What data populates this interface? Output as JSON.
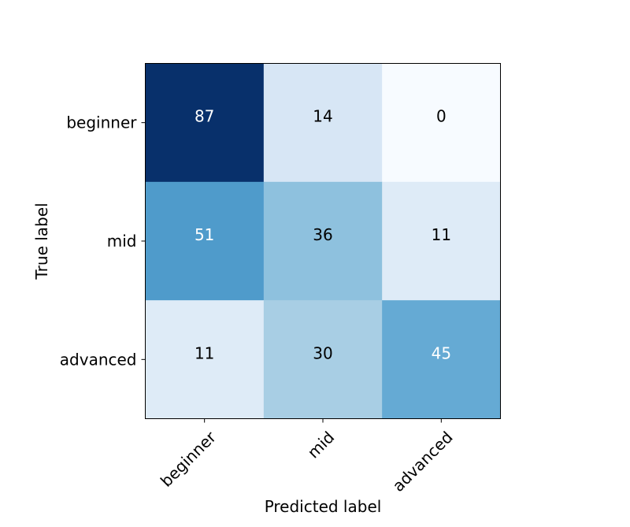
{
  "chart_data": {
    "type": "heatmap",
    "title": "",
    "xlabel": "Predicted label",
    "ylabel": "True label",
    "x_categories": [
      "beginner",
      "mid",
      "advanced"
    ],
    "y_categories": [
      "beginner",
      "mid",
      "advanced"
    ],
    "values": [
      [
        87,
        14,
        0
      ],
      [
        51,
        36,
        11
      ],
      [
        11,
        30,
        45
      ]
    ],
    "colormap": "Blues",
    "value_range": [
      0,
      87
    ],
    "colorbar": false,
    "grid": false,
    "x_tick_rotation_deg": 45
  },
  "colors": {
    "text_dark": "#000000",
    "text_light": "#ffffff",
    "frame": "#000000"
  }
}
